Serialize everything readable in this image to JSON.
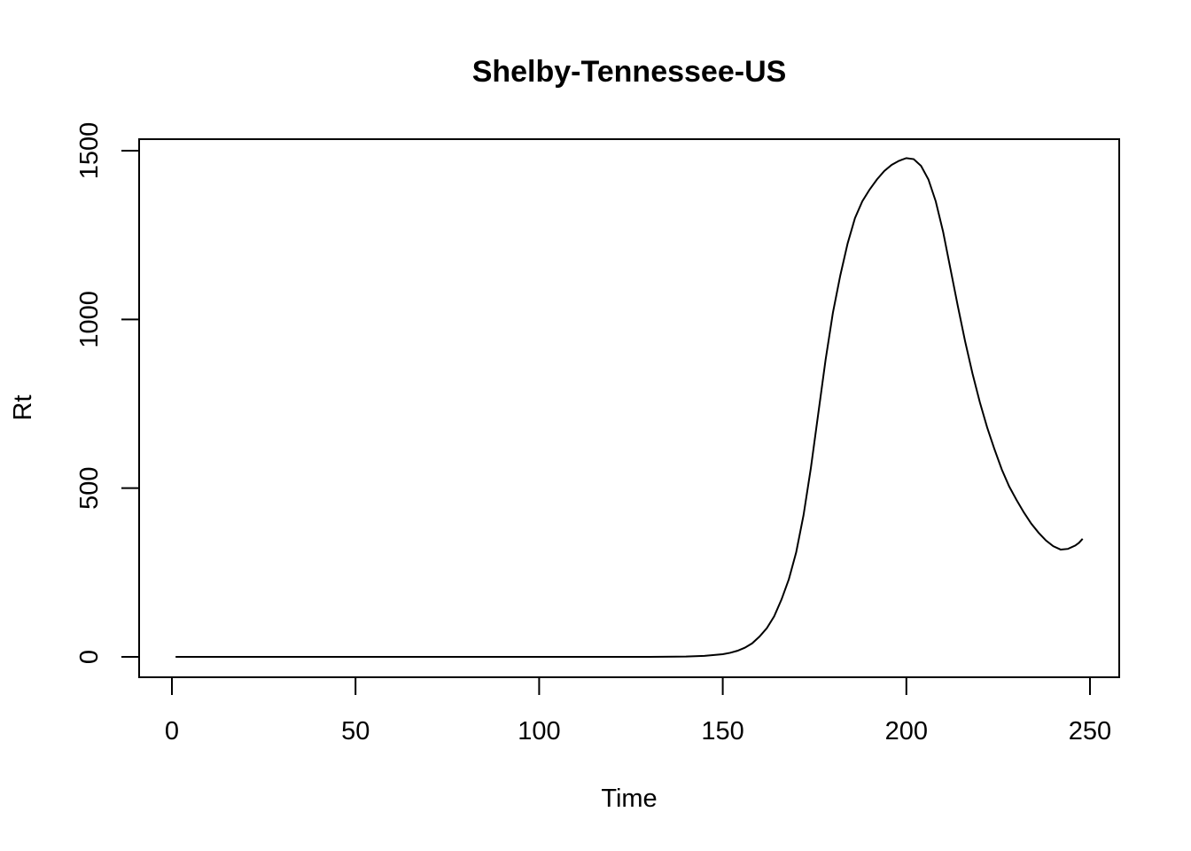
{
  "chart_data": {
    "type": "line",
    "title": "Shelby-Tennessee-US",
    "xlabel": "Time",
    "ylabel": "Rt",
    "xlim": [
      1,
      248
    ],
    "ylim": [
      0,
      1500
    ],
    "xticks": [
      0,
      50,
      100,
      150,
      200,
      250
    ],
    "yticks": [
      0,
      500,
      1000,
      1500
    ],
    "grid": false,
    "series": [
      {
        "x": [
          1,
          20,
          40,
          60,
          80,
          100,
          120,
          130,
          140,
          145,
          150,
          152,
          154,
          156,
          158,
          160,
          162,
          164,
          166,
          168,
          170,
          172,
          174,
          176,
          178,
          180,
          182,
          184,
          186,
          188,
          190,
          192,
          194,
          196,
          198,
          200,
          202,
          204,
          206,
          208,
          210,
          212,
          214,
          216,
          218,
          220,
          222,
          224,
          226,
          228,
          230,
          232,
          234,
          236,
          238,
          240,
          242,
          244,
          246,
          247,
          248
        ],
        "y": [
          0,
          0,
          0,
          0,
          0,
          0,
          0,
          0,
          1,
          3,
          8,
          12,
          18,
          27,
          40,
          60,
          85,
          120,
          170,
          230,
          310,
          420,
          560,
          720,
          880,
          1020,
          1130,
          1225,
          1300,
          1350,
          1385,
          1415,
          1440,
          1458,
          1470,
          1478,
          1475,
          1455,
          1415,
          1350,
          1260,
          1150,
          1040,
          935,
          840,
          755,
          680,
          615,
          555,
          505,
          465,
          428,
          395,
          368,
          345,
          328,
          318,
          320,
          330,
          338,
          350
        ]
      }
    ]
  }
}
